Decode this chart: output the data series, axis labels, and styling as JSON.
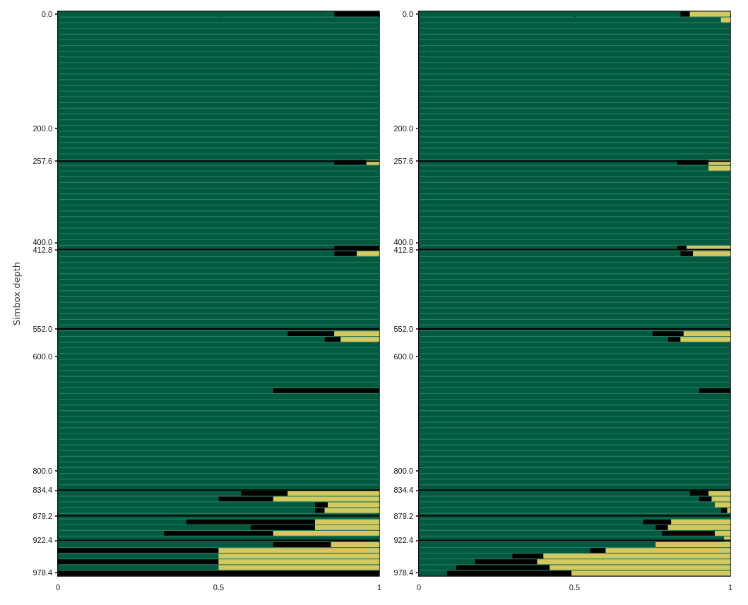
{
  "chart_data": [
    {
      "type": "bar",
      "orientation": "horizontal",
      "stacked": true,
      "ylabel": "Simbox depth",
      "x": [
        0,
        10,
        20,
        30,
        40,
        50,
        60,
        70,
        80,
        90,
        100,
        110,
        120,
        130,
        140,
        150,
        160,
        170,
        180,
        190,
        200,
        210,
        220,
        230,
        240,
        250,
        260,
        270,
        280,
        290,
        300,
        310,
        320,
        330,
        340,
        350,
        360,
        370,
        380,
        390,
        400,
        410,
        420,
        430,
        440,
        450,
        460,
        470,
        480,
        490,
        500,
        510,
        520,
        530,
        540,
        550,
        560,
        570,
        580,
        590,
        600,
        610,
        620,
        630,
        640,
        650,
        660,
        670,
        680,
        690,
        700,
        710,
        720,
        730,
        740,
        750,
        760,
        770,
        780,
        790,
        800,
        810,
        820,
        830,
        840,
        850,
        860,
        870,
        880,
        890,
        900,
        910,
        920,
        930,
        940,
        950,
        960,
        970,
        980
      ],
      "series": [
        {
          "color": "#005a40",
          "values": [
            0.86,
            1,
            1,
            1,
            1,
            1,
            1,
            1,
            1,
            1,
            1,
            1,
            1,
            1,
            1,
            1,
            1,
            1,
            1,
            1,
            1,
            1,
            1,
            1,
            1,
            1,
            0.86,
            1,
            1,
            1,
            1,
            1,
            1,
            1,
            1,
            1,
            1,
            1,
            1,
            1,
            1,
            0.86,
            0.86,
            1,
            1,
            1,
            1,
            1,
            1,
            1,
            1,
            1,
            1,
            1,
            1,
            1,
            0.715,
            0.83,
            1,
            1,
            1,
            1,
            1,
            1,
            1,
            1,
            0.67,
            1,
            1,
            1,
            1,
            1,
            1,
            1,
            1,
            1,
            1,
            1,
            1,
            1,
            1,
            1,
            1,
            1,
            0.57,
            0.5,
            0.8,
            0.8,
            1,
            0.4,
            0.6,
            0.33,
            1,
            0.67,
            0,
            0.5,
            0,
            0.5,
            0
          ]
        },
        {
          "color": "#000000",
          "values": [
            0.14,
            0,
            0,
            0,
            0,
            0,
            0,
            0,
            0,
            0,
            0,
            0,
            0,
            0,
            0,
            0,
            0,
            0,
            0,
            0,
            0,
            0,
            0,
            0,
            0,
            0,
            0.1,
            0,
            0,
            0,
            0,
            0,
            0,
            0,
            0,
            0,
            0,
            0,
            0,
            0,
            0,
            0.14,
            0.07,
            0,
            0,
            0,
            0,
            0,
            0,
            0,
            0,
            0,
            0,
            0,
            0,
            0,
            0.145,
            0.05,
            0,
            0,
            0,
            0,
            0,
            0,
            0,
            0,
            0.33,
            0,
            0,
            0,
            0,
            0,
            0,
            0,
            0,
            0,
            0,
            0,
            0,
            0,
            0,
            0,
            0,
            0,
            0.145,
            0.17,
            0.04,
            0.03,
            0,
            0.4,
            0.2,
            0.34,
            0,
            0.18,
            0.5,
            0,
            0.5,
            0,
            1
          ]
        },
        {
          "color": "#d4c95f",
          "values": [
            0,
            0,
            0,
            0,
            0,
            0,
            0,
            0,
            0,
            0,
            0,
            0,
            0,
            0,
            0,
            0,
            0,
            0,
            0,
            0,
            0,
            0,
            0,
            0,
            0,
            0,
            0.04,
            0,
            0,
            0,
            0,
            0,
            0,
            0,
            0,
            0,
            0,
            0,
            0,
            0,
            0,
            0,
            0.07,
            0,
            0,
            0,
            0,
            0,
            0,
            0,
            0,
            0,
            0,
            0,
            0,
            0,
            0.14,
            0.12,
            0,
            0,
            0,
            0,
            0,
            0,
            0,
            0,
            0,
            0,
            0,
            0,
            0,
            0,
            0,
            0,
            0,
            0,
            0,
            0,
            0,
            0,
            0,
            0,
            0,
            0,
            0.285,
            0.33,
            0.16,
            0.17,
            0,
            0.2,
            0.2,
            0.33,
            0,
            0.15,
            0.5,
            0.5,
            0.5,
            0.5,
            0
          ]
        }
      ],
      "xlim": [
        0,
        1
      ],
      "xticks": [
        0,
        0.5,
        1
      ],
      "ylim": [
        985,
        -5
      ],
      "yticks": [
        {
          "value": 0,
          "label": "0.0"
        },
        {
          "value": 200,
          "label": "200.0"
        },
        257.6,
        {
          "value": 400,
          "label": "400.0"
        },
        412.8,
        {
          "value": 552,
          "label": "552.0"
        },
        {
          "value": 600,
          "label": "600.0"
        },
        {
          "value": 800,
          "label": "800.0"
        },
        834.4,
        879.2,
        922.4,
        978.4
      ],
      "ref_lines": [
        {
          "axis": "y",
          "value": 257.6,
          "color": "#000000"
        },
        {
          "axis": "y",
          "value": 412.8,
          "color": "#000000"
        },
        {
          "axis": "y",
          "value": 552,
          "color": "#000000"
        },
        {
          "axis": "y",
          "value": 834.4,
          "color": "#000000"
        },
        {
          "axis": "y",
          "value": 879.2,
          "color": "#000000"
        },
        {
          "axis": "y",
          "value": 922.4,
          "color": "#000000"
        }
      ]
    },
    {
      "type": "bar",
      "orientation": "horizontal",
      "stacked": true,
      "x": [
        0,
        10,
        20,
        30,
        40,
        50,
        60,
        70,
        80,
        90,
        100,
        110,
        120,
        130,
        140,
        150,
        160,
        170,
        180,
        190,
        200,
        210,
        220,
        230,
        240,
        250,
        260,
        270,
        280,
        290,
        300,
        310,
        320,
        330,
        340,
        350,
        360,
        370,
        380,
        390,
        400,
        410,
        420,
        430,
        440,
        450,
        460,
        470,
        480,
        490,
        500,
        510,
        520,
        530,
        540,
        550,
        560,
        570,
        580,
        590,
        600,
        610,
        620,
        630,
        640,
        650,
        660,
        670,
        680,
        690,
        700,
        710,
        720,
        730,
        740,
        750,
        760,
        770,
        780,
        790,
        800,
        810,
        820,
        830,
        840,
        850,
        860,
        870,
        880,
        890,
        900,
        910,
        920,
        930,
        940,
        950,
        960,
        970,
        980
      ],
      "series": [
        {
          "color": "#005a40",
          "values": [
            0.84,
            0.97,
            1,
            1,
            1,
            1,
            1,
            1,
            1,
            1,
            1,
            1,
            1,
            1,
            1,
            1,
            1,
            1,
            1,
            1,
            1,
            1,
            1,
            1,
            1,
            1,
            0.83,
            0.93,
            1,
            1,
            1,
            1,
            1,
            1,
            1,
            1,
            1,
            1,
            1,
            1,
            1,
            0.83,
            0.84,
            1,
            1,
            1,
            1,
            1,
            1,
            1,
            1,
            1,
            1,
            1,
            1,
            1,
            0.75,
            0.8,
            1,
            1,
            1,
            1,
            1,
            1,
            1,
            1,
            0.9,
            1,
            1,
            1,
            1,
            1,
            1,
            1,
            1,
            1,
            1,
            1,
            1,
            1,
            1,
            1,
            1,
            1,
            0.87,
            0.9,
            0.95,
            0.97,
            1,
            0.72,
            0.76,
            0.78,
            0.98,
            0.76,
            0.55,
            0.3,
            0.18,
            0.12,
            0.09
          ]
        },
        {
          "color": "#000000",
          "values": [
            0.03,
            0,
            0,
            0,
            0,
            0,
            0,
            0,
            0,
            0,
            0,
            0,
            0,
            0,
            0,
            0,
            0,
            0,
            0,
            0,
            0,
            0,
            0,
            0,
            0,
            0,
            0.1,
            0,
            0,
            0,
            0,
            0,
            0,
            0,
            0,
            0,
            0,
            0,
            0,
            0,
            0,
            0.03,
            0.04,
            0,
            0,
            0,
            0,
            0,
            0,
            0,
            0,
            0,
            0,
            0,
            0,
            0,
            0.1,
            0.04,
            0,
            0,
            0,
            0,
            0,
            0,
            0,
            0,
            0.1,
            0,
            0,
            0,
            0,
            0,
            0,
            0,
            0,
            0,
            0,
            0,
            0,
            0,
            0,
            0,
            0,
            0,
            0.06,
            0.04,
            0,
            0.02,
            0,
            0.09,
            0.04,
            0.17,
            0,
            0,
            0.05,
            0.1,
            0.2,
            0.3,
            0.4
          ]
        },
        {
          "color": "#d4c95f",
          "values": [
            0.13,
            0.03,
            0,
            0,
            0,
            0,
            0,
            0,
            0,
            0,
            0,
            0,
            0,
            0,
            0,
            0,
            0,
            0,
            0,
            0,
            0,
            0,
            0,
            0,
            0,
            0,
            0.07,
            0.07,
            0,
            0,
            0,
            0,
            0,
            0,
            0,
            0,
            0,
            0,
            0,
            0,
            0,
            0.14,
            0.12,
            0,
            0,
            0,
            0,
            0,
            0,
            0,
            0,
            0,
            0,
            0,
            0,
            0,
            0.15,
            0.16,
            0,
            0,
            0,
            0,
            0,
            0,
            0,
            0,
            0,
            0,
            0,
            0,
            0,
            0,
            0,
            0,
            0,
            0,
            0,
            0,
            0,
            0,
            0,
            0,
            0,
            0,
            0.07,
            0.06,
            0.05,
            0.01,
            0,
            0.19,
            0.2,
            0.05,
            0.02,
            0.24,
            0.4,
            0.6,
            0.62,
            0.58,
            0.51
          ]
        }
      ],
      "xlim": [
        0,
        1
      ],
      "xticks": [
        0,
        0.5,
        1
      ],
      "ylim": [
        985,
        -5
      ],
      "yticks": [
        {
          "value": 0,
          "label": "0.0"
        },
        {
          "value": 200,
          "label": "200.0"
        },
        257.6,
        {
          "value": 400,
          "label": "400.0"
        },
        412.8,
        {
          "value": 552,
          "label": "552.0"
        },
        {
          "value": 600,
          "label": "600.0"
        },
        {
          "value": 800,
          "label": "800.0"
        },
        834.4,
        879.2,
        922.4,
        978.4
      ],
      "ref_lines": [
        {
          "axis": "y",
          "value": 257.6,
          "color": "#000000"
        },
        {
          "axis": "y",
          "value": 412.8,
          "color": "#000000"
        },
        {
          "axis": "y",
          "value": 552,
          "color": "#000000"
        },
        {
          "axis": "y",
          "value": 834.4,
          "color": "#000000"
        },
        {
          "axis": "y",
          "value": 879.2,
          "color": "#000000"
        },
        {
          "axis": "y",
          "value": 922.4,
          "color": "#000000"
        }
      ]
    }
  ]
}
